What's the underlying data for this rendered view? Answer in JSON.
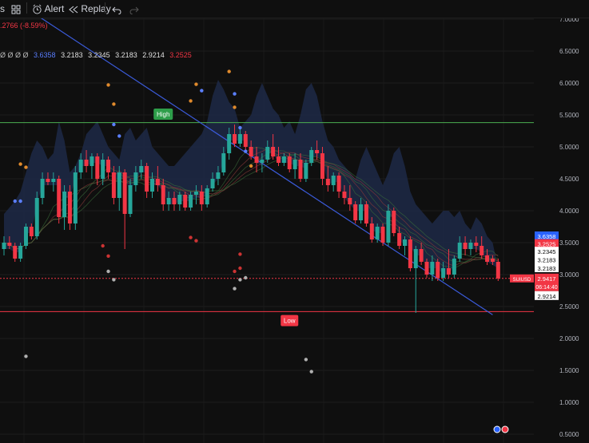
{
  "toolbar": {
    "left_fragment": "s",
    "alert_label": "Alert",
    "replay_label": "Replay",
    "icons": [
      "grid-icon",
      "alarm-clock-icon",
      "rewind-icon",
      "undo-icon",
      "redo-icon"
    ]
  },
  "legend": {
    "change_text": ".2766 (-8.59%)",
    "circles": "Ø Ø Ø Ø",
    "values": [
      "3.6358",
      "3.2183",
      "3.2345",
      "3.2183",
      "2.9214",
      "3.2525"
    ],
    "value_colors": [
      "#5b7fff",
      "#e0e0e0",
      "#e0e0e0",
      "#e0e0e0",
      "#e0e0e0",
      "#f23645"
    ]
  },
  "chart_data": {
    "type": "candlestick",
    "ylim": [
      0.5,
      7.5
    ],
    "y_ticks": [
      "7.0000",
      "6.5000",
      "6.0000",
      "5.5000",
      "5.0000",
      "4.5000",
      "4.0000",
      "3.5000",
      "3.0000",
      "2.5000",
      "2.0000",
      "1.5000",
      "1.0000",
      "0.5000"
    ],
    "candles": [
      {
        "o": 3.4,
        "h": 3.6,
        "l": 3.3,
        "c": 3.5
      },
      {
        "o": 3.5,
        "h": 3.6,
        "l": 3.4,
        "c": 3.45
      },
      {
        "o": 3.45,
        "h": 3.5,
        "l": 3.2,
        "c": 3.25
      },
      {
        "o": 3.25,
        "h": 3.5,
        "l": 3.2,
        "c": 3.45
      },
      {
        "o": 3.45,
        "h": 3.8,
        "l": 3.4,
        "c": 3.75
      },
      {
        "o": 3.75,
        "h": 3.8,
        "l": 3.55,
        "c": 3.6
      },
      {
        "o": 3.6,
        "h": 4.3,
        "l": 3.55,
        "c": 4.2
      },
      {
        "o": 4.2,
        "h": 4.6,
        "l": 4.1,
        "c": 4.5
      },
      {
        "o": 4.5,
        "h": 4.6,
        "l": 4.4,
        "c": 4.45
      },
      {
        "o": 4.45,
        "h": 4.6,
        "l": 4.3,
        "c": 4.5
      },
      {
        "o": 4.5,
        "h": 4.55,
        "l": 3.8,
        "c": 3.9
      },
      {
        "o": 3.9,
        "h": 4.4,
        "l": 3.7,
        "c": 4.3
      },
      {
        "o": 4.3,
        "h": 4.4,
        "l": 3.7,
        "c": 3.8
      },
      {
        "o": 3.8,
        "h": 4.7,
        "l": 3.7,
        "c": 4.6
      },
      {
        "o": 4.6,
        "h": 4.9,
        "l": 4.5,
        "c": 4.8
      },
      {
        "o": 4.8,
        "h": 4.95,
        "l": 4.6,
        "c": 4.7
      },
      {
        "o": 4.7,
        "h": 4.9,
        "l": 4.5,
        "c": 4.85
      },
      {
        "o": 4.85,
        "h": 4.9,
        "l": 4.4,
        "c": 4.5
      },
      {
        "o": 4.5,
        "h": 4.9,
        "l": 4.4,
        "c": 4.8
      },
      {
        "o": 4.8,
        "h": 4.85,
        "l": 4.5,
        "c": 4.6
      },
      {
        "o": 4.6,
        "h": 4.7,
        "l": 4.1,
        "c": 4.2
      },
      {
        "o": 4.2,
        "h": 4.7,
        "l": 4.0,
        "c": 4.6
      },
      {
        "o": 4.6,
        "h": 4.65,
        "l": 3.4,
        "c": 3.95
      },
      {
        "o": 3.95,
        "h": 4.5,
        "l": 3.9,
        "c": 4.4
      },
      {
        "o": 4.4,
        "h": 4.7,
        "l": 4.3,
        "c": 4.6
      },
      {
        "o": 4.6,
        "h": 4.8,
        "l": 4.5,
        "c": 4.7
      },
      {
        "o": 4.7,
        "h": 4.75,
        "l": 4.2,
        "c": 4.3
      },
      {
        "o": 4.3,
        "h": 4.6,
        "l": 4.2,
        "c": 4.5
      },
      {
        "o": 4.5,
        "h": 4.7,
        "l": 4.3,
        "c": 4.4
      },
      {
        "o": 4.4,
        "h": 4.5,
        "l": 4.0,
        "c": 4.1
      },
      {
        "o": 4.1,
        "h": 4.3,
        "l": 4.0,
        "c": 4.2
      },
      {
        "o": 4.2,
        "h": 4.3,
        "l": 4.0,
        "c": 4.1
      },
      {
        "o": 4.1,
        "h": 4.3,
        "l": 4.0,
        "c": 4.25
      },
      {
        "o": 4.25,
        "h": 4.3,
        "l": 4.0,
        "c": 4.05
      },
      {
        "o": 4.05,
        "h": 4.3,
        "l": 4.0,
        "c": 4.25
      },
      {
        "o": 4.25,
        "h": 4.4,
        "l": 4.1,
        "c": 4.3
      },
      {
        "o": 4.3,
        "h": 4.4,
        "l": 4.0,
        "c": 4.1
      },
      {
        "o": 4.1,
        "h": 4.4,
        "l": 4.05,
        "c": 4.35
      },
      {
        "o": 4.35,
        "h": 4.6,
        "l": 4.3,
        "c": 4.5
      },
      {
        "o": 4.5,
        "h": 4.7,
        "l": 4.4,
        "c": 4.6
      },
      {
        "o": 4.6,
        "h": 5.0,
        "l": 4.55,
        "c": 4.9
      },
      {
        "o": 4.9,
        "h": 5.3,
        "l": 4.8,
        "c": 5.2
      },
      {
        "o": 5.2,
        "h": 5.35,
        "l": 5.0,
        "c": 5.05
      },
      {
        "o": 5.05,
        "h": 5.3,
        "l": 5.0,
        "c": 5.2
      },
      {
        "o": 5.2,
        "h": 5.25,
        "l": 4.95,
        "c": 5.0
      },
      {
        "o": 5.0,
        "h": 5.1,
        "l": 4.8,
        "c": 4.85
      },
      {
        "o": 4.85,
        "h": 5.0,
        "l": 4.6,
        "c": 4.75
      },
      {
        "o": 4.75,
        "h": 4.9,
        "l": 4.6,
        "c": 4.8
      },
      {
        "o": 4.8,
        "h": 5.1,
        "l": 4.75,
        "c": 5.0
      },
      {
        "o": 5.0,
        "h": 5.2,
        "l": 4.8,
        "c": 4.85
      },
      {
        "o": 4.85,
        "h": 5.0,
        "l": 4.7,
        "c": 4.75
      },
      {
        "o": 4.75,
        "h": 4.9,
        "l": 4.7,
        "c": 4.85
      },
      {
        "o": 4.85,
        "h": 4.9,
        "l": 4.6,
        "c": 4.65
      },
      {
        "o": 4.65,
        "h": 4.9,
        "l": 4.5,
        "c": 4.8
      },
      {
        "o": 4.8,
        "h": 4.9,
        "l": 4.45,
        "c": 4.5
      },
      {
        "o": 4.5,
        "h": 4.8,
        "l": 4.45,
        "c": 4.75
      },
      {
        "o": 4.75,
        "h": 5.0,
        "l": 4.7,
        "c": 4.95
      },
      {
        "o": 4.95,
        "h": 5.1,
        "l": 4.8,
        "c": 4.9
      },
      {
        "o": 4.9,
        "h": 5.0,
        "l": 4.4,
        "c": 4.5
      },
      {
        "o": 4.5,
        "h": 4.7,
        "l": 4.3,
        "c": 4.4
      },
      {
        "o": 4.4,
        "h": 4.6,
        "l": 4.3,
        "c": 4.55
      },
      {
        "o": 4.55,
        "h": 4.6,
        "l": 4.2,
        "c": 4.3
      },
      {
        "o": 4.3,
        "h": 4.4,
        "l": 4.1,
        "c": 4.2
      },
      {
        "o": 4.2,
        "h": 4.4,
        "l": 4.0,
        "c": 4.1
      },
      {
        "o": 4.1,
        "h": 4.15,
        "l": 3.8,
        "c": 3.85
      },
      {
        "o": 3.85,
        "h": 4.2,
        "l": 3.8,
        "c": 4.1
      },
      {
        "o": 4.1,
        "h": 4.15,
        "l": 3.75,
        "c": 3.8
      },
      {
        "o": 3.8,
        "h": 3.9,
        "l": 3.5,
        "c": 3.55
      },
      {
        "o": 3.55,
        "h": 3.8,
        "l": 3.5,
        "c": 3.75
      },
      {
        "o": 3.75,
        "h": 3.8,
        "l": 3.45,
        "c": 3.5
      },
      {
        "o": 3.5,
        "h": 4.1,
        "l": 3.45,
        "c": 4.0
      },
      {
        "o": 4.0,
        "h": 4.05,
        "l": 3.6,
        "c": 3.65
      },
      {
        "o": 3.65,
        "h": 3.75,
        "l": 3.4,
        "c": 3.45
      },
      {
        "o": 3.45,
        "h": 3.6,
        "l": 3.3,
        "c": 3.55
      },
      {
        "o": 3.55,
        "h": 3.6,
        "l": 3.05,
        "c": 3.1
      },
      {
        "o": 3.1,
        "h": 3.45,
        "l": 2.4,
        "c": 3.4
      },
      {
        "o": 3.4,
        "h": 3.5,
        "l": 3.15,
        "c": 3.2
      },
      {
        "o": 3.2,
        "h": 3.25,
        "l": 2.95,
        "c": 3.0
      },
      {
        "o": 3.0,
        "h": 3.3,
        "l": 2.9,
        "c": 3.2
      },
      {
        "o": 3.2,
        "h": 3.25,
        "l": 2.9,
        "c": 2.95
      },
      {
        "o": 2.95,
        "h": 3.2,
        "l": 2.9,
        "c": 3.1
      },
      {
        "o": 3.1,
        "h": 3.4,
        "l": 2.95,
        "c": 3.0
      },
      {
        "o": 3.0,
        "h": 3.3,
        "l": 2.95,
        "c": 3.25
      },
      {
        "o": 3.25,
        "h": 3.6,
        "l": 3.2,
        "c": 3.5
      },
      {
        "o": 3.5,
        "h": 3.6,
        "l": 3.3,
        "c": 3.4
      },
      {
        "o": 3.4,
        "h": 3.55,
        "l": 3.3,
        "c": 3.5
      },
      {
        "o": 3.5,
        "h": 3.6,
        "l": 3.35,
        "c": 3.45
      },
      {
        "o": 3.45,
        "h": 3.6,
        "l": 3.25,
        "c": 3.3
      },
      {
        "o": 3.3,
        "h": 3.4,
        "l": 3.15,
        "c": 3.2
      },
      {
        "o": 3.25,
        "h": 3.3,
        "l": 3.15,
        "c": 3.2
      },
      {
        "o": 3.2,
        "h": 3.25,
        "l": 2.9,
        "c": 2.94
      }
    ],
    "band_upper": [
      3.95,
      4.05,
      4.15,
      4.3,
      4.6,
      4.9,
      5.1,
      5.0,
      4.8,
      4.9,
      5.4,
      5.1,
      4.6,
      4.7,
      4.9,
      5.2,
      5.3,
      5.4,
      5.2,
      5.0,
      4.9,
      4.8,
      5.2,
      5.3,
      5.1,
      5.2,
      5.3,
      5.0,
      4.9,
      4.8,
      4.7,
      4.7,
      4.8,
      4.9,
      5.0,
      5.1,
      5.2,
      5.4,
      5.8,
      6.05,
      5.9,
      5.7,
      5.6,
      5.3,
      5.4,
      5.5,
      5.8,
      6.0,
      5.8,
      5.6,
      5.5,
      5.3,
      5.4,
      5.2,
      5.5,
      5.9,
      6.0,
      5.8,
      5.4,
      5.1,
      5.0,
      4.8,
      4.7,
      4.6,
      4.5,
      4.8,
      5.0,
      4.8,
      4.6,
      4.4,
      4.6,
      4.9,
      5.0,
      4.7,
      4.3,
      4.1,
      4.0,
      3.9,
      3.8,
      3.9,
      4.0,
      4.0,
      3.9,
      4.0,
      3.8,
      3.7,
      3.9,
      3.8,
      3.6,
      3.5
    ],
    "hlines": [
      {
        "price": 5.38,
        "color": "#4caf50"
      },
      {
        "price": 2.42,
        "color": "#f23645"
      },
      {
        "price": 2.94,
        "color": "#f23645",
        "dashed": true
      }
    ],
    "trendline": {
      "from": [
        0,
        7.4
      ],
      "to": [
        89,
        2.37
      ],
      "color": "#3b5bdb"
    },
    "dots": [
      {
        "i": 3,
        "p": 4.73,
        "c": "#e08a2c"
      },
      {
        "i": 4,
        "p": 4.68,
        "c": "#e08a2c"
      },
      {
        "i": 2,
        "p": 4.15,
        "c": "#5b7fff"
      },
      {
        "i": 3,
        "p": 4.15,
        "c": "#5b7fff"
      },
      {
        "i": 4,
        "p": 1.72,
        "c": "#b0b0b0"
      },
      {
        "i": 19,
        "p": 5.97,
        "c": "#e08a2c"
      },
      {
        "i": 20,
        "p": 5.67,
        "c": "#e08a2c"
      },
      {
        "i": 20,
        "p": 5.35,
        "c": "#5b7fff"
      },
      {
        "i": 21,
        "p": 5.17,
        "c": "#5b7fff"
      },
      {
        "i": 19,
        "p": 3.29,
        "c": "#c33"
      },
      {
        "i": 19,
        "p": 3.05,
        "c": "#b0b0b0"
      },
      {
        "i": 20,
        "p": 2.92,
        "c": "#b0b0b0"
      },
      {
        "i": 18,
        "p": 3.45,
        "c": "#c33"
      },
      {
        "i": 35,
        "p": 5.98,
        "c": "#e08a2c"
      },
      {
        "i": 34,
        "p": 5.72,
        "c": "#e08a2c"
      },
      {
        "i": 36,
        "p": 5.88,
        "c": "#5b7fff"
      },
      {
        "i": 34,
        "p": 3.58,
        "c": "#c33"
      },
      {
        "i": 35,
        "p": 3.53,
        "c": "#c33"
      },
      {
        "i": 41,
        "p": 6.18,
        "c": "#e08a2c"
      },
      {
        "i": 42,
        "p": 5.83,
        "c": "#5b7fff"
      },
      {
        "i": 42,
        "p": 5.62,
        "c": "#e08a2c"
      },
      {
        "i": 43,
        "p": 5.3,
        "c": "#5b7fff"
      },
      {
        "i": 44,
        "p": 4.93,
        "c": "#5b7fff"
      },
      {
        "i": 45,
        "p": 4.7,
        "c": "#e08a2c"
      },
      {
        "i": 43,
        "p": 3.32,
        "c": "#c33"
      },
      {
        "i": 42,
        "p": 3.05,
        "c": "#c33"
      },
      {
        "i": 43,
        "p": 3.1,
        "c": "#c33"
      },
      {
        "i": 43,
        "p": 2.92,
        "c": "#b0b0b0"
      },
      {
        "i": 44,
        "p": 2.95,
        "c": "#b0b0b0"
      },
      {
        "i": 42,
        "p": 2.78,
        "c": "#b0b0b0"
      },
      {
        "i": 55,
        "p": 1.67,
        "c": "#b0b0b0"
      },
      {
        "i": 56,
        "p": 1.48,
        "c": "#b0b0b0"
      }
    ],
    "labels": {
      "high": {
        "text": "High",
        "i": 29,
        "p": 5.5
      },
      "low": {
        "text": "Low",
        "i": 52,
        "p": 2.28
      }
    },
    "price_tags": [
      {
        "text": "3.6358",
        "bg": "#2962ff",
        "fg": "#ffffff",
        "p": 3.6
      },
      {
        "text": "3.2525",
        "bg": "#f23645",
        "fg": "#ffffff",
        "p": 3.48
      },
      {
        "text": "3.2345",
        "bg": "#ffffff",
        "fg": "#000000",
        "p": 3.36
      },
      {
        "text": "3.2183",
        "bg": "#ffffff",
        "fg": "#000000",
        "p": 3.23
      },
      {
        "text": "3.2183",
        "bg": "#ffffff",
        "fg": "#000000",
        "p": 3.1
      }
    ],
    "current": {
      "symbol": "SUIUSD",
      "price": "2.9417",
      "countdown": "06:14:40",
      "low_tag": "2.9214"
    }
  }
}
